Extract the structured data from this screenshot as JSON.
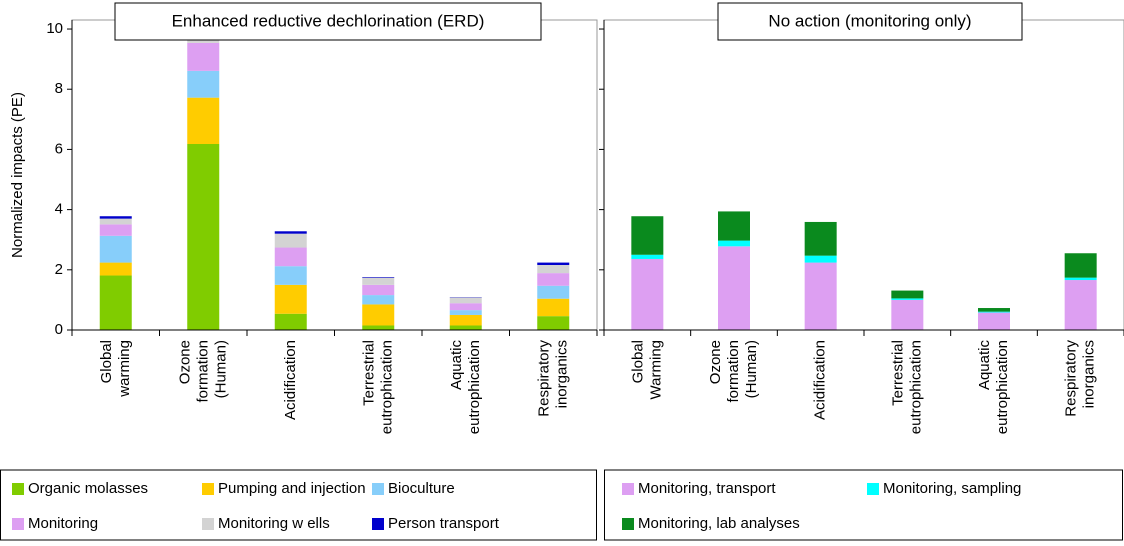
{
  "chart_data": [
    {
      "type": "stacked_bar",
      "title": "Enhanced reductive dechlorination (ERD)",
      "y_label": "Normalized impacts (PE)",
      "categories": [
        "Global warming",
        "Ozone formation (Human)",
        "Acidification",
        "Terrestrial eutrophication",
        "Aquatic eutrophication",
        "Respiratory inorganics"
      ],
      "ylim": [
        0,
        10.3
      ],
      "yticks": [
        0,
        2,
        4,
        6,
        8,
        10
      ],
      "series": [
        {
          "name": "Organic molasses",
          "color": "#80cc00",
          "values": [
            1.81,
            6.18,
            0.54,
            0.15,
            0.15,
            0.46
          ]
        },
        {
          "name": "Pumping and injection",
          "color": "#ffcc00",
          "values": [
            0.43,
            1.54,
            0.96,
            0.7,
            0.35,
            0.58
          ]
        },
        {
          "name": "Bioculture",
          "color": "#87cefa",
          "values": [
            0.89,
            0.89,
            0.62,
            0.31,
            0.16,
            0.43
          ]
        },
        {
          "name": "Monitoring",
          "color": "#dd9ff2",
          "values": [
            0.38,
            0.93,
            0.62,
            0.34,
            0.23,
            0.42
          ]
        },
        {
          "name": "Monitoring w ells",
          "color": "#d3d3d3",
          "values": [
            0.19,
            0.58,
            0.46,
            0.24,
            0.19,
            0.27
          ]
        },
        {
          "name": "Person transport",
          "color": "#0000cc",
          "values": [
            0.08,
            0.08,
            0.08,
            0.02,
            0.01,
            0.08
          ]
        }
      ]
    },
    {
      "type": "stacked_bar",
      "title": "No action (monitoring only)",
      "categories": [
        "Global Warming",
        "Ozone formation (Human)",
        "Acidification",
        "Terrestrial eutrophication",
        "Aquatic eutrophication",
        "Respiratory inorganics"
      ],
      "ylim": [
        0,
        10.3
      ],
      "yticks": [
        0,
        2,
        4,
        6,
        8,
        10
      ],
      "series": [
        {
          "name": "Monitoring, transport",
          "color": "#dd9ff2",
          "values": [
            2.36,
            2.78,
            2.24,
            1.0,
            0.58,
            1.66
          ]
        },
        {
          "name": "Monitoring, sampling",
          "color": "#00ffff",
          "values": [
            0.14,
            0.19,
            0.23,
            0.05,
            0.03,
            0.08
          ]
        },
        {
          "name": "Monitoring, lab analyses",
          "color": "#0a8a1e",
          "values": [
            1.28,
            0.97,
            1.12,
            0.26,
            0.12,
            0.81
          ]
        }
      ]
    }
  ]
}
